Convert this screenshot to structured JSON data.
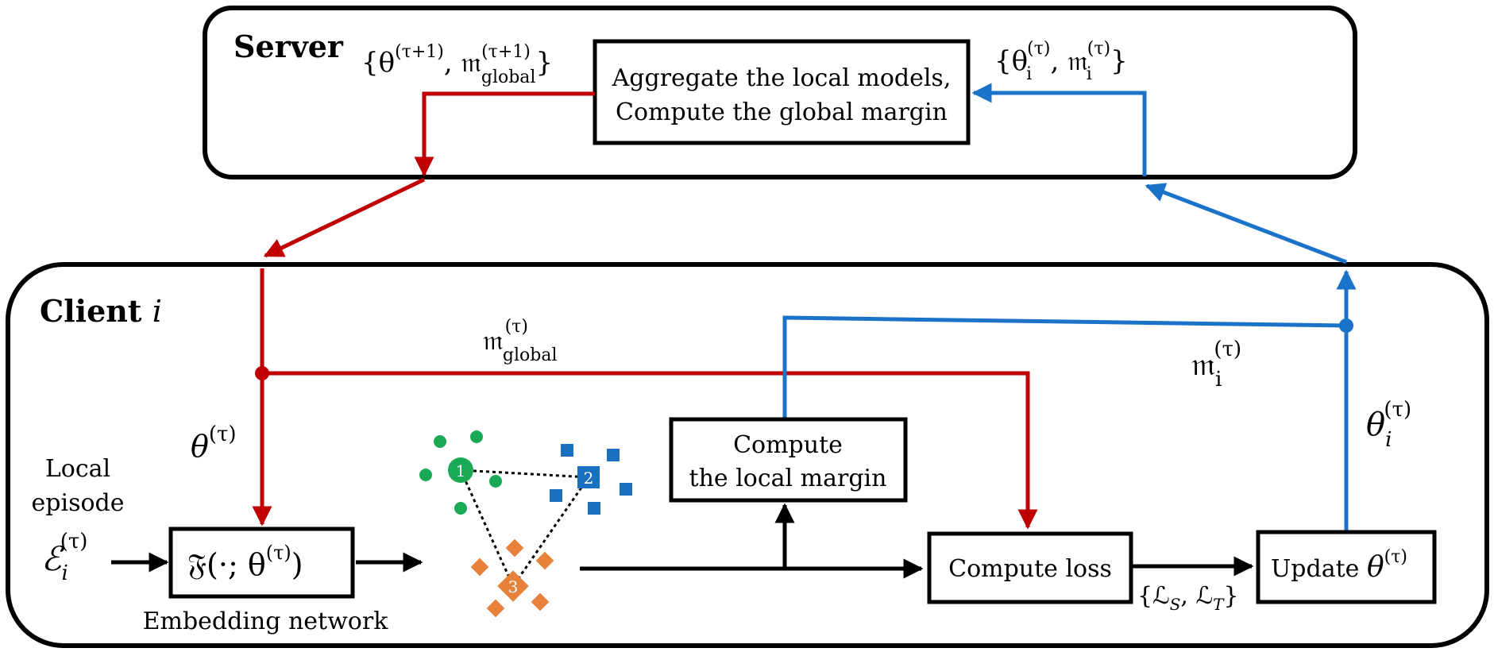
{
  "server": {
    "title": "Server",
    "aggregate_box": {
      "line1": "Aggregate the local models,",
      "line2": "Compute the global margin"
    },
    "downlink_label": {
      "open": "{θ",
      "sup1": "(τ+1)",
      "comma": ", 𝔪",
      "sup2": "(τ+1)",
      "sub2": "global",
      "close": "}"
    },
    "uplink_label": {
      "open": "{θ",
      "sub1": "i",
      "sup1": "(τ)",
      "comma": ", 𝔪",
      "sub2": "i",
      "sup2": "(τ)",
      "close": "}"
    }
  },
  "client": {
    "title_bold": "Client ",
    "title_ital": "i",
    "local_episode": {
      "line1": "Local",
      "line2": "episode"
    },
    "episode_symbol": {
      "base": "ℰ",
      "sub": "i",
      "sup": "(τ)"
    },
    "theta_label": {
      "base": "θ",
      "sup": "(τ)"
    },
    "margin_global_label": {
      "base": "𝔪",
      "sub": "global",
      "sup": "(τ)"
    },
    "margin_i_label": {
      "base": "𝔪",
      "sub": "i",
      "sup": "(τ)"
    },
    "theta_i_label": {
      "base": "θ",
      "sub": "i",
      "sup": "(τ)"
    },
    "embedding_box": {
      "text": "𝔉(·; θ",
      "sup": "(τ)",
      "close": ")"
    },
    "embedding_caption": "Embedding network",
    "local_margin_box": {
      "line1": "Compute",
      "line2": "the local margin"
    },
    "loss_box": "Compute loss",
    "loss_terms": {
      "open": "{ℒ",
      "sub1": "S",
      "mid": ", ℒ",
      "sub2": "T",
      "close": "}"
    },
    "update_box": {
      "text": "Update ",
      "theta": "θ",
      "sup": "(τ)"
    }
  },
  "prototypes": [
    {
      "label": "1"
    },
    {
      "label": "2"
    },
    {
      "label": "3"
    }
  ],
  "colors": {
    "red": "#c00000",
    "blue": "#1a73c8",
    "green": "#1aaa55",
    "square_blue": "#1a6fbf",
    "orange": "#e8823a",
    "black": "#000000"
  }
}
